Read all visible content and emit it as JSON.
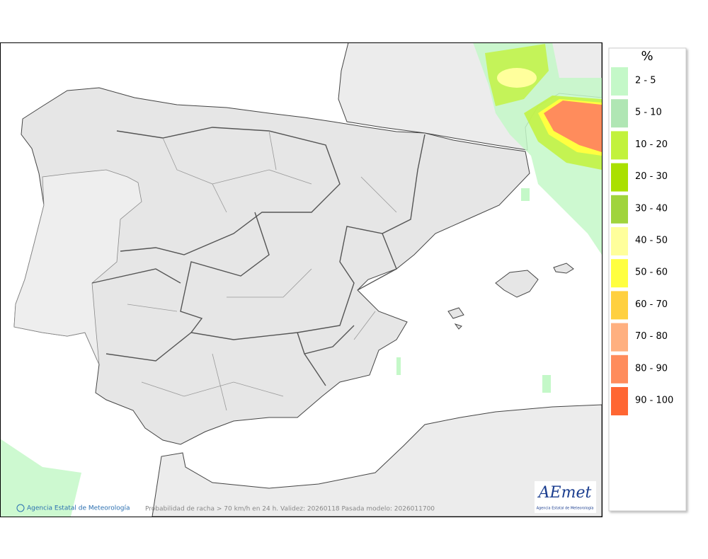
{
  "legend": {
    "title": "%",
    "items": [
      {
        "label": "2 - 5",
        "color": "#c4f8c8"
      },
      {
        "label": "5 - 10",
        "color": "#b0e6b4"
      },
      {
        "label": "10 - 20",
        "color": "#c2f23c"
      },
      {
        "label": "20 - 30",
        "color": "#aae000"
      },
      {
        "label": "30 - 40",
        "color": "#a0d43c"
      },
      {
        "label": "40 - 50",
        "color": "#ffff9c"
      },
      {
        "label": "50 - 60",
        "color": "#ffff40"
      },
      {
        "label": "60 - 70",
        "color": "#ffd040"
      },
      {
        "label": "70 - 80",
        "color": "#ffb080"
      },
      {
        "label": "80 - 90",
        "color": "#ff8c5c"
      },
      {
        "label": "90 - 100",
        "color": "#ff6633"
      }
    ]
  },
  "footer": {
    "credit": "Agencia Estatal de Meteorología",
    "caption": "Probabilidad de racha > 70 km/h en 24 h. Validez: 20260118 Pasada modelo: 2026011700"
  },
  "logo": {
    "name": "AEmet",
    "subtitle": "Agencia Estatal de Meteorología"
  }
}
